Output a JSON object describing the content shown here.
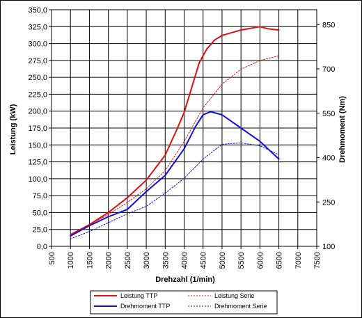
{
  "chart_data": {
    "type": "line",
    "xlabel": "Drehzahl (1/min)",
    "ylabel_left": "Leistung (kW)",
    "ylabel_right": "Drehmoment (Nm)",
    "xlim": [
      500,
      7500
    ],
    "ylim_left": [
      0,
      350
    ],
    "ylim_right": [
      100,
      900
    ],
    "grid": true,
    "legend_position": "bottom",
    "x_ticks": [
      "500",
      "1000",
      "1500",
      "2000",
      "2500",
      "3000",
      "3500",
      "4000",
      "4500",
      "5000",
      "5500",
      "6000",
      "6500",
      "7000",
      "7500"
    ],
    "y_left_ticks": [
      "0,0",
      "25,0",
      "50,0",
      "75,0",
      "100,0",
      "125,0",
      "150,0",
      "175,0",
      "200,0",
      "225,0",
      "250,0",
      "275,0",
      "300,0",
      "325,0",
      "350,0"
    ],
    "y_right_ticks": [
      "100",
      "250",
      "400",
      "550",
      "700",
      "850"
    ],
    "y_right_tick_values": [
      100,
      250,
      400,
      550,
      700,
      850
    ],
    "series": [
      {
        "name": "Leistung TTP",
        "axis": "left",
        "color": "#e01010",
        "dash": "solid",
        "x": [
          1000,
          1500,
          2000,
          2500,
          3000,
          3500,
          3800,
          4000,
          4200,
          4400,
          4600,
          4800,
          5000,
          5500,
          6000,
          6200,
          6500
        ],
        "y": [
          17,
          32,
          50,
          72,
          98,
          135,
          172,
          198,
          235,
          272,
          292,
          305,
          312,
          320,
          325,
          322,
          320
        ]
      },
      {
        "name": "Drehmoment TTP",
        "axis": "right",
        "color": "#1010e0",
        "dash": "solid",
        "x": [
          1000,
          1500,
          2000,
          2500,
          3000,
          3500,
          4000,
          4300,
          4500,
          4700,
          5000,
          5500,
          6000,
          6500
        ],
        "y": [
          135,
          170,
          200,
          225,
          285,
          340,
          430,
          505,
          545,
          555,
          545,
          500,
          455,
          395
        ]
      },
      {
        "name": "Leistung Serie",
        "axis": "left",
        "color": "#e01010",
        "dash": "dotted",
        "x": [
          1000,
          1500,
          2000,
          2500,
          3000,
          3500,
          4000,
          4500,
          5000,
          5500,
          6000,
          6500
        ],
        "y": [
          18,
          32,
          47,
          65,
          85,
          112,
          155,
          205,
          240,
          262,
          275,
          282
        ]
      },
      {
        "name": "Drehmoment Serie",
        "axis": "right",
        "color": "#1010e0",
        "dash": "dotted",
        "x": [
          1000,
          1500,
          2000,
          2500,
          3000,
          3500,
          4000,
          4500,
          5000,
          5500,
          6000,
          6500
        ],
        "y": [
          125,
          150,
          180,
          210,
          235,
          280,
          330,
          395,
          445,
          450,
          440,
          410
        ]
      }
    ]
  }
}
